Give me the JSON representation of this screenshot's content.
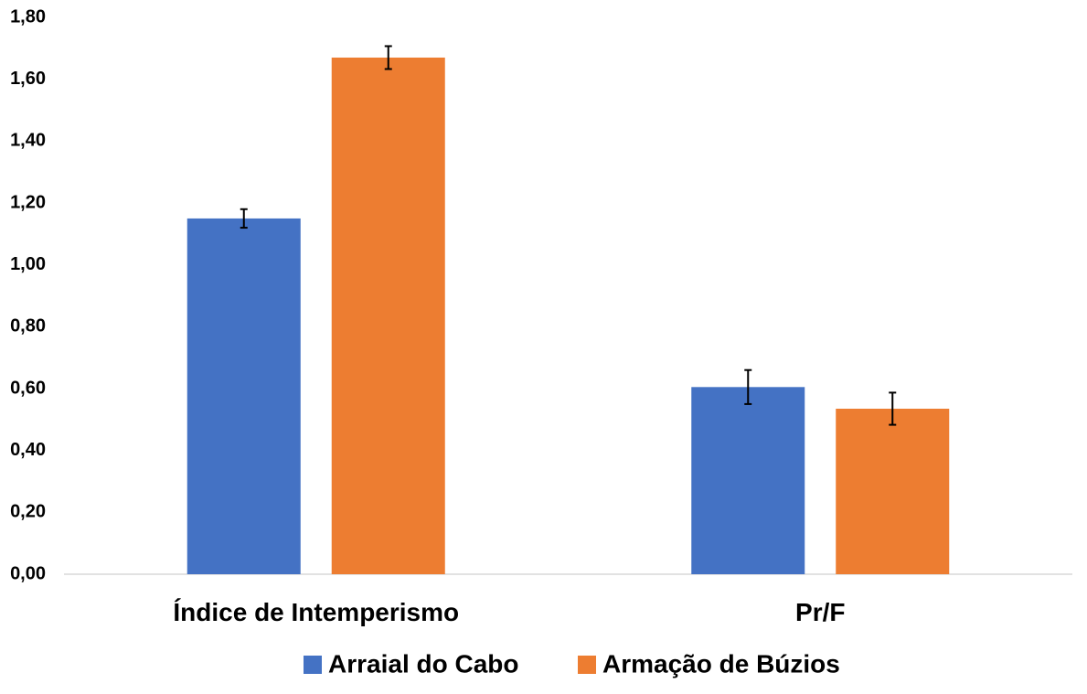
{
  "chart_data": {
    "type": "bar",
    "title": "",
    "xlabel": "",
    "ylabel": "",
    "categories": [
      "Índice de Intemperismo",
      "Pr/F"
    ],
    "series": [
      {
        "name": "Arraial do Cabo",
        "color": "#4472C4",
        "values": [
          1.15,
          0.605
        ],
        "errors": [
          0.03,
          0.055
        ]
      },
      {
        "name": "Armação de Búzios",
        "color": "#ED7D31",
        "values": [
          1.67,
          0.535
        ],
        "errors": [
          0.037,
          0.052
        ]
      }
    ],
    "ylim": [
      0,
      1.8
    ],
    "yticks": [
      "0,00",
      "0,20",
      "0,40",
      "0,60",
      "0,80",
      "1,00",
      "1,20",
      "1,40",
      "1,60",
      "1,80"
    ],
    "grid": false,
    "legend": "bottom"
  }
}
